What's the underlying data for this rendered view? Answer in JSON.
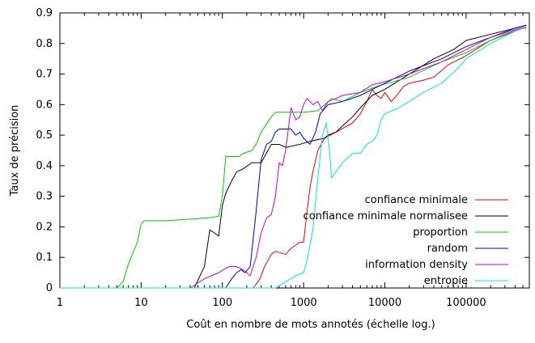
{
  "chart_data": {
    "type": "line",
    "title": "",
    "xlabel": "Coût en nombre de mots annotés (échelle log.)",
    "ylabel": "Taux de précision",
    "xscale": "log",
    "xlim": [
      1,
      600000
    ],
    "ylim": [
      0,
      0.9
    ],
    "xticks": [
      1,
      10,
      100,
      1000,
      10000,
      100000
    ],
    "xtick_labels": [
      "1",
      "10",
      "100",
      "1000",
      "10000",
      "100000"
    ],
    "yticks": [
      0,
      0.1,
      0.2,
      0.3,
      0.4,
      0.5,
      0.6,
      0.7,
      0.8,
      0.9
    ],
    "ytick_labels": [
      "0",
      "0.1",
      "0.2",
      "0.3",
      "0.4",
      "0.5",
      "0.6",
      "0.7",
      "0.8",
      "0.9"
    ],
    "grid": false,
    "legend_position": "bottom-right",
    "series": [
      {
        "name": "confiance minimale",
        "color": "#e8000b",
        "points": [
          [
            1,
            0
          ],
          [
            240,
            0
          ],
          [
            290,
            0.03
          ],
          [
            330,
            0.07
          ],
          [
            400,
            0.11
          ],
          [
            450,
            0.12
          ],
          [
            600,
            0.11
          ],
          [
            700,
            0.13
          ],
          [
            800,
            0.14
          ],
          [
            900,
            0.15
          ],
          [
            1000,
            0.15
          ],
          [
            1100,
            0.25
          ],
          [
            1200,
            0.33
          ],
          [
            1300,
            0.38
          ],
          [
            1500,
            0.45
          ],
          [
            1800,
            0.49
          ],
          [
            2500,
            0.51
          ],
          [
            4000,
            0.54
          ],
          [
            5000,
            0.57
          ],
          [
            6000,
            0.61
          ],
          [
            7000,
            0.65
          ],
          [
            8000,
            0.63
          ],
          [
            9000,
            0.62
          ],
          [
            10000,
            0.64
          ],
          [
            12000,
            0.61
          ],
          [
            14000,
            0.63
          ],
          [
            17000,
            0.66
          ],
          [
            20000,
            0.67
          ],
          [
            30000,
            0.68
          ],
          [
            40000,
            0.69
          ],
          [
            60000,
            0.73
          ],
          [
            100000,
            0.76
          ],
          [
            150000,
            0.79
          ],
          [
            200000,
            0.81
          ],
          [
            300000,
            0.83
          ],
          [
            500000,
            0.85
          ],
          [
            550000,
            0.85
          ]
        ]
      },
      {
        "name": "confiance minimale normalisee",
        "color": "#000000",
        "points": [
          [
            1,
            0
          ],
          [
            45,
            0
          ],
          [
            60,
            0.07
          ],
          [
            70,
            0.19
          ],
          [
            80,
            0.18
          ],
          [
            90,
            0.17
          ],
          [
            100,
            0.27
          ],
          [
            110,
            0.31
          ],
          [
            130,
            0.35
          ],
          [
            150,
            0.38
          ],
          [
            180,
            0.39
          ],
          [
            230,
            0.41
          ],
          [
            300,
            0.41
          ],
          [
            400,
            0.47
          ],
          [
            500,
            0.47
          ],
          [
            600,
            0.46
          ],
          [
            900,
            0.47
          ],
          [
            1200,
            0.48
          ],
          [
            1800,
            0.49
          ],
          [
            2000,
            0.5
          ],
          [
            2500,
            0.51
          ],
          [
            3000,
            0.53
          ],
          [
            4000,
            0.56
          ],
          [
            5000,
            0.59
          ],
          [
            7000,
            0.63
          ],
          [
            10000,
            0.65
          ],
          [
            20000,
            0.7
          ],
          [
            40000,
            0.75
          ],
          [
            70000,
            0.78
          ],
          [
            100000,
            0.81
          ],
          [
            200000,
            0.83
          ],
          [
            400000,
            0.85
          ],
          [
            550000,
            0.86
          ]
        ]
      },
      {
        "name": "proportion",
        "color": "#00cc00",
        "points": [
          [
            1,
            0
          ],
          [
            5,
            0
          ],
          [
            6,
            0.02
          ],
          [
            7,
            0.08
          ],
          [
            9,
            0.15
          ],
          [
            10,
            0.21
          ],
          [
            11,
            0.22
          ],
          [
            13,
            0.22
          ],
          [
            20,
            0.22
          ],
          [
            40,
            0.225
          ],
          [
            70,
            0.23
          ],
          [
            90,
            0.235
          ],
          [
            100,
            0.3
          ],
          [
            110,
            0.43
          ],
          [
            140,
            0.43
          ],
          [
            160,
            0.43
          ],
          [
            180,
            0.44
          ],
          [
            230,
            0.45
          ],
          [
            260,
            0.47
          ],
          [
            300,
            0.51
          ],
          [
            400,
            0.56
          ],
          [
            450,
            0.575
          ],
          [
            600,
            0.575
          ],
          [
            1000,
            0.575
          ],
          [
            1500,
            0.58
          ],
          [
            2000,
            0.61
          ],
          [
            2200,
            0.62
          ],
          [
            3000,
            0.61
          ],
          [
            5000,
            0.64
          ],
          [
            8000,
            0.66
          ],
          [
            20000,
            0.69
          ],
          [
            50000,
            0.74
          ],
          [
            100000,
            0.77
          ],
          [
            200000,
            0.81
          ],
          [
            400000,
            0.84
          ],
          [
            550000,
            0.855
          ]
        ]
      },
      {
        "name": "random",
        "color": "#0000cc",
        "points": [
          [
            1,
            0
          ],
          [
            110,
            0
          ],
          [
            130,
            0.03
          ],
          [
            150,
            0.05
          ],
          [
            170,
            0.06
          ],
          [
            190,
            0.05
          ],
          [
            220,
            0.07
          ],
          [
            260,
            0.25
          ],
          [
            300,
            0.42
          ],
          [
            350,
            0.47
          ],
          [
            400,
            0.48
          ],
          [
            450,
            0.51
          ],
          [
            500,
            0.52
          ],
          [
            700,
            0.52
          ],
          [
            800,
            0.5
          ],
          [
            900,
            0.51
          ],
          [
            1000,
            0.49
          ],
          [
            1200,
            0.47
          ],
          [
            1400,
            0.51
          ],
          [
            1600,
            0.57
          ],
          [
            2000,
            0.6
          ],
          [
            3000,
            0.61
          ],
          [
            5000,
            0.63
          ],
          [
            7000,
            0.65
          ],
          [
            10000,
            0.67
          ],
          [
            20000,
            0.71
          ],
          [
            50000,
            0.75
          ],
          [
            100000,
            0.79
          ],
          [
            200000,
            0.82
          ],
          [
            400000,
            0.85
          ],
          [
            550000,
            0.86
          ]
        ]
      },
      {
        "name": "information density",
        "color": "#cc00cc",
        "points": [
          [
            1,
            0
          ],
          [
            40,
            0
          ],
          [
            60,
            0.03
          ],
          [
            90,
            0.05
          ],
          [
            120,
            0.07
          ],
          [
            150,
            0.07
          ],
          [
            180,
            0.06
          ],
          [
            220,
            0.04
          ],
          [
            260,
            0.1
          ],
          [
            300,
            0.18
          ],
          [
            350,
            0.23
          ],
          [
            400,
            0.24
          ],
          [
            450,
            0.3
          ],
          [
            500,
            0.41
          ],
          [
            550,
            0.4
          ],
          [
            600,
            0.45
          ],
          [
            700,
            0.59
          ],
          [
            800,
            0.55
          ],
          [
            900,
            0.56
          ],
          [
            1000,
            0.6
          ],
          [
            1100,
            0.62
          ],
          [
            1300,
            0.6
          ],
          [
            1500,
            0.61
          ],
          [
            1700,
            0.58
          ],
          [
            2000,
            0.61
          ],
          [
            2500,
            0.62
          ],
          [
            3000,
            0.63
          ],
          [
            5000,
            0.64
          ],
          [
            7000,
            0.665
          ],
          [
            10000,
            0.675
          ],
          [
            20000,
            0.7
          ],
          [
            50000,
            0.74
          ],
          [
            100000,
            0.78
          ],
          [
            200000,
            0.82
          ],
          [
            400000,
            0.845
          ],
          [
            550000,
            0.855
          ]
        ]
      },
      {
        "name": "entropie",
        "color": "#00e5e5",
        "points": [
          [
            1,
            0
          ],
          [
            450,
            0
          ],
          [
            600,
            0.02
          ],
          [
            800,
            0.04
          ],
          [
            1000,
            0.05
          ],
          [
            1100,
            0.09
          ],
          [
            1300,
            0.19
          ],
          [
            1500,
            0.36
          ],
          [
            1700,
            0.5
          ],
          [
            1900,
            0.54
          ],
          [
            2100,
            0.44
          ],
          [
            2200,
            0.36
          ],
          [
            2500,
            0.38
          ],
          [
            3000,
            0.41
          ],
          [
            4000,
            0.44
          ],
          [
            5000,
            0.44
          ],
          [
            6000,
            0.47
          ],
          [
            7000,
            0.48
          ],
          [
            8000,
            0.5
          ],
          [
            9000,
            0.55
          ],
          [
            10000,
            0.57
          ],
          [
            15000,
            0.59
          ],
          [
            30000,
            0.64
          ],
          [
            50000,
            0.67
          ],
          [
            80000,
            0.72
          ],
          [
            100000,
            0.75
          ],
          [
            200000,
            0.8
          ],
          [
            400000,
            0.84
          ],
          [
            550000,
            0.855
          ]
        ]
      }
    ]
  }
}
